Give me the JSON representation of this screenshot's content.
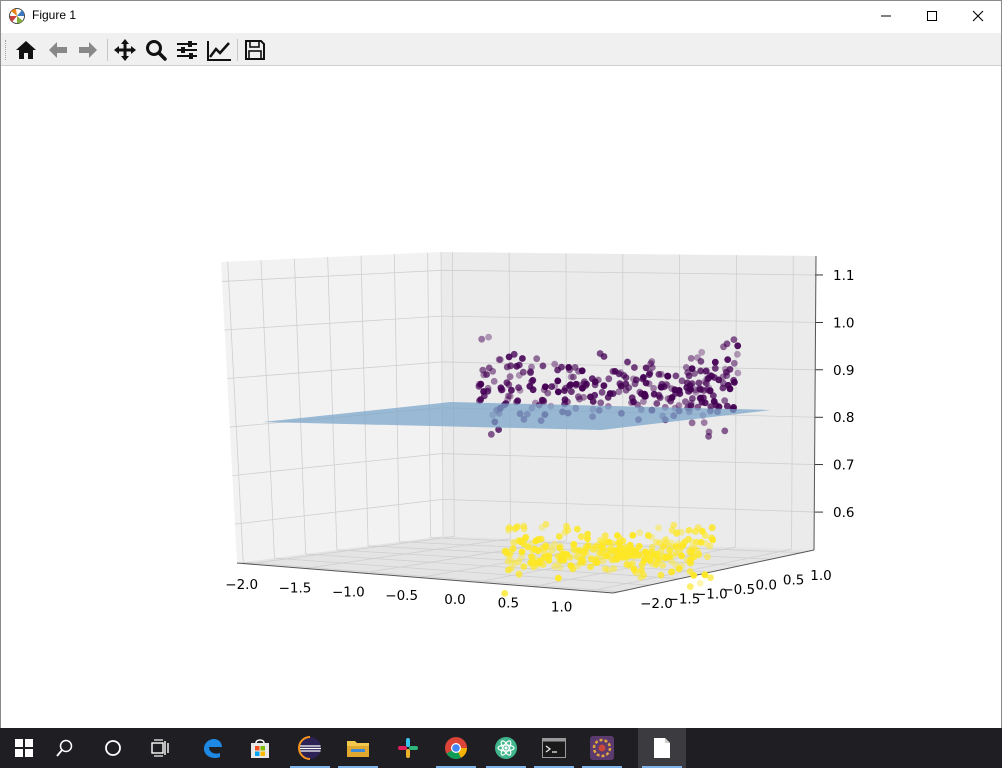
{
  "window": {
    "title": "Figure 1",
    "icon": "matplotlib-icon",
    "controls": [
      "minimize-icon",
      "maximize-icon",
      "close-icon"
    ]
  },
  "toolbar": {
    "buttons": [
      {
        "name": "home",
        "icon": "home-icon"
      },
      {
        "name": "back",
        "icon": "arrow-left-icon"
      },
      {
        "name": "forward",
        "icon": "arrow-right-icon"
      },
      {
        "name": "pan",
        "icon": "move-icon"
      },
      {
        "name": "zoom",
        "icon": "zoom-icon"
      },
      {
        "name": "configure-subplots",
        "icon": "sliders-icon"
      },
      {
        "name": "edit-axis",
        "icon": "line-chart-icon"
      },
      {
        "name": "save",
        "icon": "save-icon"
      }
    ]
  },
  "chart_data": {
    "type": "scatter",
    "projection": "3d",
    "title": "",
    "xlabel": "",
    "ylabel": "",
    "zlabel": "",
    "x_ticks": [
      "−2.0",
      "−1.5",
      "−1.0",
      "−0.5",
      "0.0",
      "0.5",
      "1.0"
    ],
    "y_ticks": [
      "−2.0",
      "−1.5",
      "−1.0",
      "−0.5",
      "0.0",
      "0.5",
      "1.0"
    ],
    "z_ticks": [
      "0.6",
      "0.7",
      "0.8",
      "0.9",
      "1.0",
      "1.1"
    ],
    "xlim": [
      -2.1,
      1.2
    ],
    "ylim": [
      -2.1,
      1.2
    ],
    "zlim": [
      0.52,
      1.14
    ],
    "grid": true,
    "series": [
      {
        "color": "#440154",
        "z_center": 1.0,
        "z_spread": 0.06,
        "count": 300
      },
      {
        "color": "#fde725",
        "z_center": 0.64,
        "z_spread": 0.04,
        "count": 300
      }
    ],
    "plane": {
      "z": 0.8,
      "color": "#6f9fc6",
      "alpha": 0.6
    }
  },
  "taskbar": {
    "items": [
      {
        "name": "start",
        "icon": "windows-icon"
      },
      {
        "name": "search",
        "icon": "search-icon"
      },
      {
        "name": "cortana",
        "icon": "circle-icon"
      },
      {
        "name": "task-view",
        "icon": "task-view-icon"
      },
      {
        "name": "edge",
        "icon": "edge-icon"
      },
      {
        "name": "store",
        "icon": "store-icon"
      },
      {
        "name": "eclipse",
        "icon": "eclipse-icon"
      },
      {
        "name": "file-explorer",
        "icon": "folder-icon"
      },
      {
        "name": "slack",
        "icon": "slack-icon"
      },
      {
        "name": "chrome",
        "icon": "chrome-icon"
      },
      {
        "name": "atom",
        "icon": "atom-icon"
      },
      {
        "name": "terminal",
        "icon": "terminal-icon"
      },
      {
        "name": "matlab-app",
        "icon": "app-icon"
      },
      {
        "name": "document",
        "icon": "document-icon"
      }
    ]
  }
}
